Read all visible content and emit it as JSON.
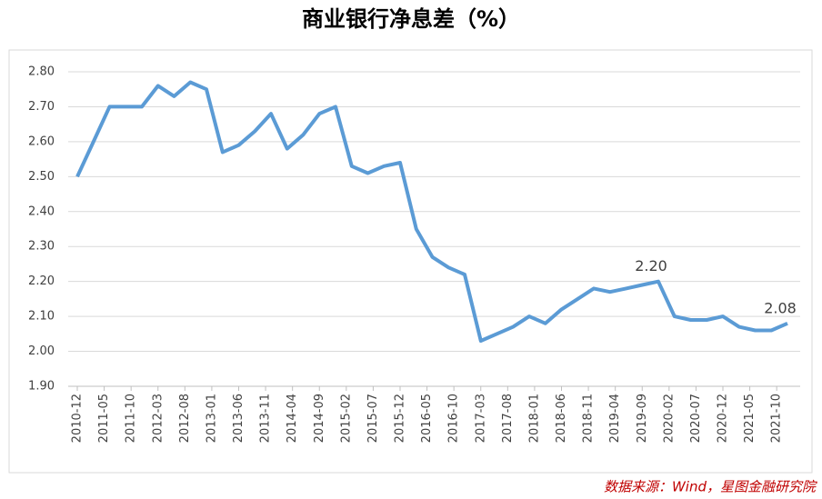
{
  "chart_data": {
    "type": "line",
    "title": "商业银行净息差（%）",
    "source": "数据来源：Wind，星图金融研究院",
    "x": [
      "2010-12",
      "2011-03",
      "2011-06",
      "2011-09",
      "2011-12",
      "2012-03",
      "2012-06",
      "2012-09",
      "2012-12",
      "2013-03",
      "2013-06",
      "2013-09",
      "2013-12",
      "2014-03",
      "2014-06",
      "2014-09",
      "2014-12",
      "2015-03",
      "2015-06",
      "2015-09",
      "2015-12",
      "2016-03",
      "2016-06",
      "2016-09",
      "2016-12",
      "2017-03",
      "2017-06",
      "2017-09",
      "2017-12",
      "2018-03",
      "2018-06",
      "2018-09",
      "2018-12",
      "2019-03",
      "2019-06",
      "2019-09",
      "2019-12",
      "2020-03",
      "2020-06",
      "2020-09",
      "2020-12",
      "2021-03",
      "2021-06",
      "2021-09",
      "2021-12"
    ],
    "values": [
      2.5,
      2.6,
      2.7,
      2.7,
      2.7,
      2.76,
      2.73,
      2.77,
      2.75,
      2.57,
      2.59,
      2.63,
      2.68,
      2.58,
      2.62,
      2.68,
      2.7,
      2.53,
      2.51,
      2.53,
      2.54,
      2.35,
      2.27,
      2.24,
      2.22,
      2.03,
      2.05,
      2.07,
      2.1,
      2.08,
      2.12,
      2.15,
      2.18,
      2.17,
      2.18,
      2.19,
      2.2,
      2.1,
      2.09,
      2.09,
      2.1,
      2.07,
      2.06,
      2.06,
      2.08
    ],
    "value_labels": [
      null,
      null,
      null,
      null,
      null,
      null,
      null,
      null,
      null,
      null,
      null,
      null,
      null,
      null,
      null,
      null,
      null,
      null,
      null,
      null,
      null,
      null,
      null,
      null,
      null,
      null,
      null,
      null,
      null,
      null,
      null,
      null,
      null,
      null,
      null,
      null,
      "2.20",
      null,
      null,
      null,
      null,
      null,
      null,
      null,
      "2.08"
    ],
    "color": "#5b9bd5",
    "ylim": [
      1.9,
      2.8
    ],
    "yticks": [
      {
        "value": 1.9,
        "label": "1.90"
      },
      {
        "value": 2.0,
        "label": "2.00"
      },
      {
        "value": 2.1,
        "label": "2.10"
      },
      {
        "value": 2.2,
        "label": "2.20"
      },
      {
        "value": 2.3,
        "label": "2.30"
      },
      {
        "value": 2.4,
        "label": "2.40"
      },
      {
        "value": 2.5,
        "label": "2.50"
      },
      {
        "value": 2.6,
        "label": "2.60"
      },
      {
        "value": 2.7,
        "label": "2.70"
      },
      {
        "value": 2.8,
        "label": "2.80"
      }
    ],
    "xticks": [
      "2010-12",
      "2011-05",
      "2011-10",
      "2012-03",
      "2012-08",
      "2013-01",
      "2013-06",
      "2013-11",
      "2014-04",
      "2014-09",
      "2015-02",
      "2015-07",
      "2015-12",
      "2016-05",
      "2016-10",
      "2017-03",
      "2017-08",
      "2018-01",
      "2018-06",
      "2018-11",
      "2019-04",
      "2019-09",
      "2020-02",
      "2020-07",
      "2020-12",
      "2021-05",
      "2021-10"
    ],
    "grid": true
  }
}
